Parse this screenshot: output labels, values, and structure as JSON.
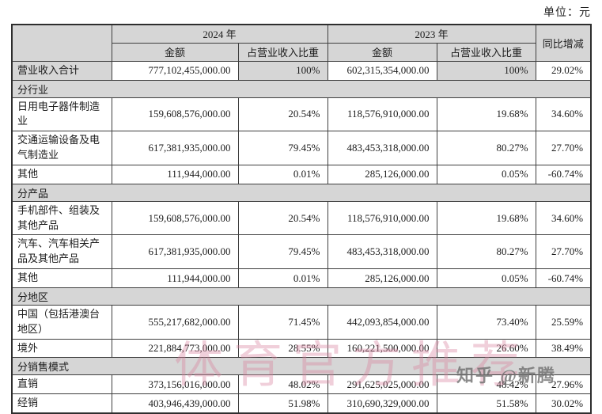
{
  "page": {
    "unit_label": "单位：元"
  },
  "table": {
    "headers": {
      "year_2024": "2024 年",
      "year_2023": "2023 年",
      "yoy": "同比增减",
      "amount": "金额",
      "share": "占营业收入比重"
    },
    "rows": [
      {
        "type": "total",
        "label": "营业收入合计",
        "v2024": "777,102,455,000.00",
        "p2024": "100%",
        "v2023": "602,315,354,000.00",
        "p2023": "100%",
        "yoy": "29.02%"
      },
      {
        "type": "section",
        "label": "分行业"
      },
      {
        "type": "data",
        "label": "日用电子器件制造业",
        "v2024": "159,608,576,000.00",
        "p2024": "20.54%",
        "v2023": "118,576,910,000.00",
        "p2023": "19.68%",
        "yoy": "34.60%"
      },
      {
        "type": "data",
        "label": "交通运输设备及电气制造业",
        "v2024": "617,381,935,000.00",
        "p2024": "79.45%",
        "v2023": "483,453,318,000.00",
        "p2023": "80.27%",
        "yoy": "27.70%"
      },
      {
        "type": "data",
        "label": "其他",
        "v2024": "111,944,000.00",
        "p2024": "0.01%",
        "v2023": "285,126,000.00",
        "p2023": "0.05%",
        "yoy": "-60.74%"
      },
      {
        "type": "section",
        "label": "分产品"
      },
      {
        "type": "data",
        "label": "手机部件、组装及其他产品",
        "v2024": "159,608,576,000.00",
        "p2024": "20.54%",
        "v2023": "118,576,910,000.00",
        "p2023": "19.68%",
        "yoy": "34.60%"
      },
      {
        "type": "data",
        "label": "汽车、汽车相关产品及其他产品",
        "v2024": "617,381,935,000.00",
        "p2024": "79.45%",
        "v2023": "483,453,318,000.00",
        "p2023": "80.27%",
        "yoy": "27.70%"
      },
      {
        "type": "data",
        "label": "其他",
        "v2024": "111,944,000.00",
        "p2024": "0.01%",
        "v2023": "285,126,000.00",
        "p2023": "0.05%",
        "yoy": "-60.74%"
      },
      {
        "type": "section",
        "label": "分地区"
      },
      {
        "type": "data",
        "label": "中国（包括港澳台地区）",
        "v2024": "555,217,682,000.00",
        "p2024": "71.45%",
        "v2023": "442,093,854,000.00",
        "p2023": "73.40%",
        "yoy": "25.59%"
      },
      {
        "type": "data",
        "label": "境外",
        "v2024": "221,884,773,000.00",
        "p2024": "28.55%",
        "v2023": "160,221,500,000.00",
        "p2023": "26.60%",
        "yoy": "38.49%"
      },
      {
        "type": "section",
        "label": "分销售模式"
      },
      {
        "type": "data",
        "label": "直销",
        "v2024": "373,156,016,000.00",
        "p2024": "48.02%",
        "v2023": "291,625,025,000.00",
        "p2023": "48.42%",
        "yoy": "27.96%"
      },
      {
        "type": "data",
        "label": "经销",
        "v2024": "403,946,439,000.00",
        "p2024": "51.98%",
        "v2023": "310,690,329,000.00",
        "p2023": "51.58%",
        "yoy": "30.02%"
      }
    ]
  },
  "watermarks": {
    "center_text": "体育官方推荐",
    "zhihu_text": "知乎 @新腾"
  },
  "colors": {
    "header_bg": "#d6d6d6",
    "border": "#3f3f3f",
    "watermark_pink": "#d9849f",
    "watermark_gray": "#6f6f6f"
  }
}
